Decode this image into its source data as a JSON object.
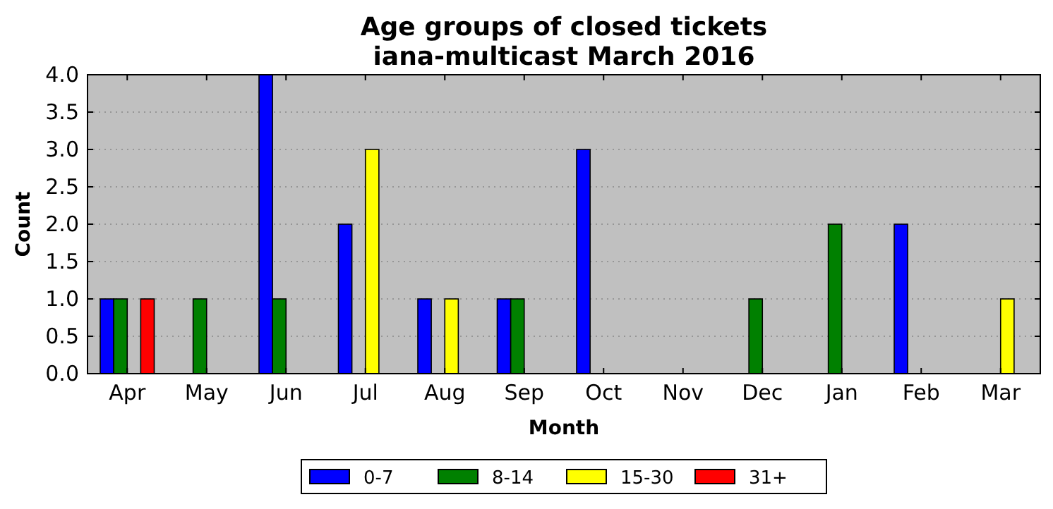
{
  "chart_data": {
    "type": "bar",
    "title": "Age groups of closed tickets\niana-multicast March 2016",
    "xlabel": "Month",
    "ylabel": "Count",
    "categories": [
      "Apr",
      "May",
      "Jun",
      "Jul",
      "Aug",
      "Sep",
      "Oct",
      "Nov",
      "Dec",
      "Jan",
      "Feb",
      "Mar"
    ],
    "series": [
      {
        "name": "0-7",
        "color": "#0000ff",
        "values": [
          1,
          0,
          4,
          2,
          1,
          1,
          3,
          0,
          0,
          0,
          2,
          0
        ]
      },
      {
        "name": "8-14",
        "color": "#008000",
        "values": [
          1,
          1,
          1,
          0,
          0,
          1,
          0,
          0,
          1,
          2,
          0,
          0
        ]
      },
      {
        "name": "15-30",
        "color": "#ffff00",
        "values": [
          0,
          0,
          0,
          3,
          1,
          0,
          0,
          0,
          0,
          0,
          0,
          1
        ]
      },
      {
        "name": "31+",
        "color": "#ff0000",
        "values": [
          1,
          0,
          0,
          0,
          0,
          0,
          0,
          0,
          0,
          0,
          0,
          0
        ]
      }
    ],
    "ylim": [
      0,
      4
    ],
    "yticks": [
      {
        "value": 0,
        "label": "0.0"
      },
      {
        "value": 0.5,
        "label": "0.5"
      },
      {
        "value": 1,
        "label": "1.0"
      },
      {
        "value": 1.5,
        "label": "1.5"
      },
      {
        "value": 2,
        "label": "2.0"
      },
      {
        "value": 2.5,
        "label": "2.5"
      },
      {
        "value": 3,
        "label": "3.0"
      },
      {
        "value": 3.5,
        "label": "3.5"
      },
      {
        "value": 4,
        "label": "4.0"
      }
    ],
    "grid": "y",
    "legend": "bottom"
  }
}
